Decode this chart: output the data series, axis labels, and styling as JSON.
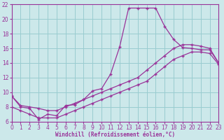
{
  "xlabel": "Windchill (Refroidissement éolien,°C)",
  "bg_color": "#cce8ea",
  "grid_color": "#99ccd0",
  "line_color": "#993399",
  "xlim": [
    0,
    23
  ],
  "ylim": [
    6,
    22
  ],
  "xticks": [
    0,
    1,
    2,
    3,
    4,
    5,
    6,
    7,
    8,
    9,
    10,
    11,
    12,
    13,
    14,
    15,
    16,
    17,
    18,
    19,
    20,
    21,
    22,
    23
  ],
  "yticks": [
    6,
    8,
    10,
    12,
    14,
    16,
    18,
    20,
    22
  ],
  "curve1_x": [
    0,
    1,
    2,
    3,
    4,
    5,
    6,
    7,
    8,
    9,
    10,
    11,
    12,
    13,
    14,
    15,
    16,
    17,
    18,
    19,
    20,
    21,
    22,
    23
  ],
  "curve1_y": [
    9.5,
    8.0,
    7.8,
    6.3,
    7.0,
    6.8,
    8.2,
    8.3,
    9.0,
    10.2,
    10.5,
    12.5,
    16.2,
    21.5,
    21.5,
    21.5,
    21.5,
    19.0,
    17.2,
    16.1,
    16.0,
    15.8,
    15.8,
    14.0
  ],
  "curve2_x": [
    0,
    1,
    2,
    3,
    4,
    5,
    6,
    7,
    8,
    9,
    10,
    11,
    12,
    13,
    14,
    15,
    16,
    17,
    18,
    19,
    20,
    21,
    22,
    23
  ],
  "curve2_y": [
    9.5,
    8.2,
    8.0,
    7.8,
    7.5,
    7.5,
    8.0,
    8.5,
    9.0,
    9.5,
    10.0,
    10.5,
    11.0,
    11.5,
    12.0,
    13.0,
    14.0,
    15.0,
    16.0,
    16.5,
    16.5,
    16.3,
    16.0,
    14.0
  ],
  "curve3_x": [
    0,
    1,
    2,
    3,
    4,
    5,
    6,
    7,
    8,
    9,
    10,
    11,
    12,
    13,
    14,
    15,
    16,
    17,
    18,
    19,
    20,
    21,
    22,
    23
  ],
  "curve3_y": [
    8.0,
    7.5,
    7.0,
    6.5,
    6.5,
    6.5,
    7.0,
    7.5,
    8.0,
    8.5,
    9.0,
    9.5,
    10.0,
    10.5,
    11.0,
    11.5,
    12.5,
    13.5,
    14.5,
    15.0,
    15.5,
    15.5,
    15.3,
    13.8
  ]
}
